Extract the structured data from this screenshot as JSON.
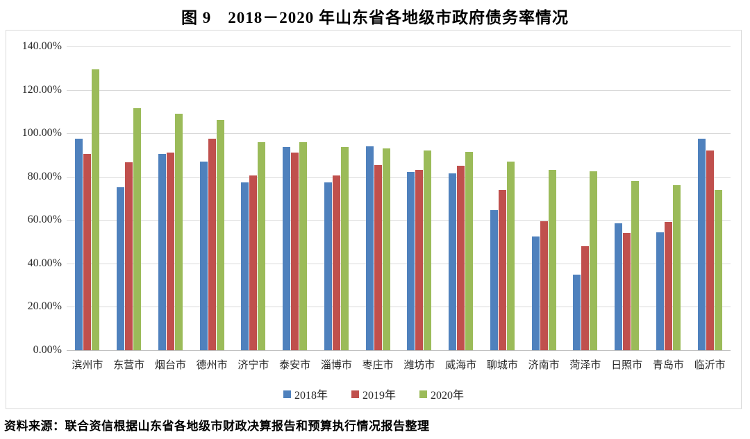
{
  "page": {
    "title": "图 9　2018－2020 年山东省各地级市政府债务率情况",
    "source": "资料来源：联合资信根据山东省各地级市财政决算报告和预算执行情况报告整理"
  },
  "chart_data": {
    "type": "bar",
    "title": "图 9　2018－2020 年山东省各地级市政府债务率情况",
    "unit": "%",
    "ylim": [
      0,
      140
    ],
    "y_ticks": [
      "140.00%",
      "120.00%",
      "100.00%",
      "80.00%",
      "60.00%",
      "40.00%",
      "20.00%",
      "0.00%"
    ],
    "grid": true,
    "legend_position": "bottom",
    "categories": [
      "滨州市",
      "东营市",
      "烟台市",
      "德州市",
      "济宁市",
      "泰安市",
      "淄博市",
      "枣庄市",
      "潍坊市",
      "威海市",
      "聊城市",
      "济南市",
      "菏泽市",
      "日照市",
      "青岛市",
      "临沂市"
    ],
    "series": [
      {
        "name": "2018年",
        "color": "#4F81BD",
        "values": [
          97.5,
          75.0,
          90.5,
          87.0,
          77.5,
          93.5,
          77.5,
          94.0,
          82.0,
          81.5,
          64.5,
          52.5,
          35.0,
          58.5,
          54.5,
          97.5
        ]
      },
      {
        "name": "2019年",
        "color": "#C0504D",
        "values": [
          90.5,
          86.5,
          91.0,
          97.5,
          80.5,
          91.0,
          80.5,
          85.5,
          83.0,
          85.0,
          74.0,
          59.5,
          48.0,
          54.0,
          59.0,
          92.0
        ]
      },
      {
        "name": "2020年",
        "color": "#9BBB59",
        "values": [
          129.5,
          111.5,
          109.0,
          106.0,
          96.0,
          96.0,
          93.5,
          93.0,
          92.0,
          91.5,
          87.0,
          83.0,
          82.5,
          78.0,
          76.0,
          74.0
        ]
      }
    ]
  }
}
